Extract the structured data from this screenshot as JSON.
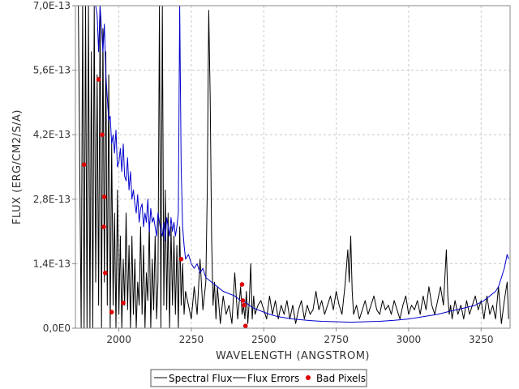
{
  "chart_data": {
    "type": "line",
    "xlabel": "WAVELENGTH (ANGSTROM)",
    "ylabel": "FLUX (ERG/CM2/S/A)",
    "xlim": [
      1850,
      3350
    ],
    "ylim": [
      0,
      7e-13
    ],
    "x_ticks": [
      2000,
      2250,
      2500,
      2750,
      3000,
      3250
    ],
    "x_tick_labels": [
      "2000",
      "2250",
      "2500",
      "2750",
      "3000",
      "3250"
    ],
    "y_ticks": [
      0,
      1.4e-13,
      2.8e-13,
      4.2e-13,
      5.6e-13,
      7e-13
    ],
    "y_tick_labels": [
      "0,0E0",
      "1,4E-13",
      "2,8E-13",
      "4,2E-13",
      "5,6E-13",
      "7,0E-13"
    ],
    "grid": true,
    "legend_position": "bottom-center",
    "series": [
      {
        "name": "Spectral Flux",
        "color": "#000000",
        "style": "line",
        "x": [
          1860,
          1870,
          1875,
          1880,
          1885,
          1890,
          1895,
          1900,
          1905,
          1910,
          1915,
          1920,
          1925,
          1930,
          1935,
          1940,
          1945,
          1950,
          1955,
          1960,
          1965,
          1970,
          1975,
          1980,
          1985,
          1990,
          1995,
          2000,
          2005,
          2010,
          2015,
          2020,
          2025,
          2030,
          2035,
          2040,
          2045,
          2050,
          2055,
          2060,
          2065,
          2070,
          2075,
          2080,
          2085,
          2090,
          2095,
          2100,
          2105,
          2110,
          2115,
          2120,
          2125,
          2130,
          2135,
          2140,
          2145,
          2150,
          2155,
          2160,
          2165,
          2170,
          2175,
          2180,
          2185,
          2190,
          2195,
          2200,
          2205,
          2210,
          2215,
          2220,
          2225,
          2230,
          2240,
          2250,
          2260,
          2270,
          2280,
          2290,
          2300,
          2305,
          2310,
          2315,
          2320,
          2325,
          2330,
          2335,
          2340,
          2350,
          2360,
          2370,
          2380,
          2390,
          2400,
          2410,
          2420,
          2425,
          2430,
          2435,
          2440,
          2445,
          2450,
          2455,
          2460,
          2465,
          2470,
          2480,
          2490,
          2500,
          2510,
          2520,
          2530,
          2540,
          2550,
          2560,
          2570,
          2580,
          2590,
          2600,
          2610,
          2620,
          2630,
          2640,
          2650,
          2660,
          2670,
          2680,
          2690,
          2700,
          2710,
          2720,
          2730,
          2740,
          2750,
          2760,
          2770,
          2780,
          2790,
          2795,
          2800,
          2805,
          2810,
          2820,
          2830,
          2840,
          2850,
          2860,
          2870,
          2880,
          2890,
          2900,
          2910,
          2920,
          2930,
          2940,
          2950,
          2960,
          2970,
          2980,
          2990,
          3000,
          3010,
          3020,
          3030,
          3040,
          3050,
          3060,
          3070,
          3080,
          3090,
          3100,
          3110,
          3120,
          3130,
          3135,
          3140,
          3145,
          3150,
          3160,
          3170,
          3180,
          3190,
          3200,
          3210,
          3220,
          3230,
          3240,
          3250,
          3260,
          3270,
          3280,
          3290,
          3300,
          3310,
          3320,
          3330,
          3340,
          3345
        ],
        "y": [
          7e-13,
          0,
          7e-13,
          0,
          7e-13,
          0,
          7e-13,
          0,
          6e-13,
          0,
          7e-13,
          1e-13,
          5.5e-13,
          5e-14,
          7e-13,
          0,
          6.5e-13,
          1e-13,
          6e-13,
          5e-14,
          5.5e-13,
          0,
          4e-13,
          5e-14,
          2.5e-13,
          0,
          3e-13,
          3e-14,
          2e-13,
          0,
          1.5e-13,
          5e-14,
          2.5e-13,
          4e-14,
          1.8e-13,
          0,
          2e-13,
          3e-14,
          1.5e-13,
          0,
          1e-13,
          5e-14,
          2.2e-13,
          3e-14,
          1.8e-13,
          0,
          1.2e-13,
          6e-14,
          2.3e-13,
          0,
          1.5e-13,
          4e-14,
          2e-13,
          2e-14,
          1e-13,
          7e-13,
          0,
          7e-13,
          5e-14,
          3e-13,
          4e-14,
          2.5e-13,
          0,
          2.2e-13,
          5e-14,
          2e-13,
          3e-14,
          1.8e-13,
          0,
          2.2e-13,
          5e-14,
          1.4e-13,
          3e-14,
          8e-14,
          5e-14,
          2e-14,
          9e-14,
          3e-14,
          1.5e-13,
          4e-14,
          1e-13,
          3e-13,
          6.9e-13,
          5e-13,
          2e-13,
          5e-14,
          1e-13,
          2e-14,
          9e-14,
          1e-14,
          7e-14,
          3e-14,
          5e-14,
          1e-14,
          1.2e-13,
          2e-14,
          9e-14,
          3e-14,
          5e-14,
          2e-14,
          8e-14,
          1e-14,
          6e-14,
          1.4e-13,
          2e-14,
          7e-14,
          3e-14,
          5e-14,
          6e-14,
          4e-14,
          2e-14,
          7e-14,
          3e-14,
          6e-14,
          2e-14,
          5e-14,
          3e-14,
          6e-14,
          2e-14,
          5e-14,
          1e-14,
          4e-14,
          6e-14,
          2e-14,
          5e-14,
          3e-14,
          4e-14,
          8e-14,
          4e-14,
          6e-14,
          3e-14,
          5e-14,
          7e-14,
          4e-14,
          8e-14,
          5e-14,
          3e-14,
          9e-14,
          1.7e-13,
          1e-13,
          2e-13,
          8e-14,
          3e-14,
          5e-14,
          2e-14,
          4e-14,
          6e-14,
          3e-14,
          5e-14,
          7e-14,
          4e-14,
          3e-14,
          6e-14,
          4e-14,
          5e-14,
          3e-14,
          6e-14,
          4e-14,
          2e-14,
          5e-14,
          7e-14,
          3e-14,
          5e-14,
          4e-14,
          6e-14,
          3e-14,
          7e-14,
          4e-14,
          9e-14,
          5e-14,
          3e-14,
          6e-14,
          9e-14,
          5e-14,
          1.7e-13,
          7e-14,
          3e-14,
          5e-14,
          2e-14,
          6e-14,
          3e-14,
          5e-14,
          2e-14,
          6e-14,
          3e-14,
          5e-14,
          7e-14,
          4e-14,
          6e-14,
          2e-14,
          7e-14,
          3e-14,
          5e-14,
          2e-14,
          9e-14,
          1e-14,
          6e-14,
          1e-13,
          2e-14
        ]
      },
      {
        "name": "Flux Errors",
        "color": "#0000cc",
        "style": "line",
        "x": [
          1920,
          1925,
          1930,
          1935,
          1940,
          1945,
          1950,
          1955,
          1960,
          1965,
          1970,
          1975,
          1980,
          1985,
          1990,
          1995,
          2000,
          2005,
          2010,
          2015,
          2020,
          2025,
          2030,
          2035,
          2040,
          2045,
          2050,
          2055,
          2060,
          2065,
          2070,
          2075,
          2080,
          2085,
          2090,
          2095,
          2100,
          2105,
          2110,
          2115,
          2120,
          2125,
          2130,
          2135,
          2140,
          2145,
          2150,
          2155,
          2160,
          2165,
          2170,
          2175,
          2180,
          2185,
          2190,
          2195,
          2200,
          2205,
          2210,
          2215,
          2220,
          2225,
          2230,
          2240,
          2250,
          2260,
          2270,
          2280,
          2290,
          2300,
          2320,
          2340,
          2360,
          2380,
          2400,
          2420,
          2440,
          2460,
          2480,
          2500,
          2520,
          2550,
          2600,
          2650,
          2700,
          2750,
          2800,
          2850,
          2900,
          2950,
          3000,
          3050,
          3100,
          3150,
          3200,
          3230,
          3260,
          3280,
          3300,
          3310,
          3320,
          3330,
          3340,
          3345
        ],
        "y": [
          7e-13,
          6.8e-13,
          6e-13,
          7e-13,
          6.5e-13,
          6e-13,
          6.6e-13,
          5.5e-13,
          5e-13,
          4.5e-13,
          4.6e-13,
          4e-13,
          4.2e-13,
          3.8e-13,
          4.3e-13,
          3.5e-13,
          3.6e-13,
          3.9e-13,
          3.4e-13,
          4e-13,
          3.3e-13,
          3.2e-13,
          3.7e-13,
          3e-13,
          3.4e-13,
          2.8e-13,
          3e-13,
          2.7e-13,
          2.5e-13,
          2.9e-13,
          2.3e-13,
          2.6e-13,
          2.7e-13,
          2.2e-13,
          2.5e-13,
          2.3e-13,
          2.8e-13,
          2.1e-13,
          2.6e-13,
          2.3e-13,
          2.4e-13,
          2.2e-13,
          2e-13,
          2.5e-13,
          2.3e-13,
          2.1e-13,
          2e-13,
          2.3e-13,
          1.9e-13,
          2.4e-13,
          2.2e-13,
          2e-13,
          2.4e-13,
          2.1e-13,
          2.3e-13,
          2e-13,
          2.2e-13,
          2.5e-13,
          7e-13,
          3.5e-13,
          2.2e-13,
          1.8e-13,
          1.5e-13,
          1.6e-13,
          1.4e-13,
          1.3e-13,
          1.4e-13,
          1.2e-13,
          1.3e-13,
          1.1e-13,
          1e-13,
          9e-14,
          8e-14,
          7.5e-14,
          7e-14,
          6e-14,
          5.5e-14,
          4.5e-14,
          4e-14,
          3.5e-14,
          3e-14,
          2.5e-14,
          2e-14,
          1.7e-14,
          1.5e-14,
          1.4e-14,
          1.3e-14,
          1.4e-14,
          1.5e-14,
          1.7e-14,
          2e-14,
          2.5e-14,
          3e-14,
          3.8e-14,
          4.5e-14,
          5e-14,
          6e-14,
          7e-14,
          8e-14,
          9e-14,
          1.1e-13,
          1.3e-13,
          1.6e-13,
          1.5e-13
        ]
      },
      {
        "name": "Bad Pixels",
        "color": "#e00000",
        "style": "points",
        "x": [
          1880,
          1930,
          1942,
          1950,
          1948,
          1953,
          1975,
          2015,
          2215,
          2425,
          2428,
          2432,
          2437
        ],
        "y": [
          3.55e-13,
          5.4e-13,
          4.2e-13,
          2.85e-13,
          2.2e-13,
          1.2e-13,
          3.5e-14,
          5.5e-14,
          1.5e-13,
          9.5e-14,
          6e-14,
          5e-14,
          5e-15
        ]
      }
    ]
  }
}
